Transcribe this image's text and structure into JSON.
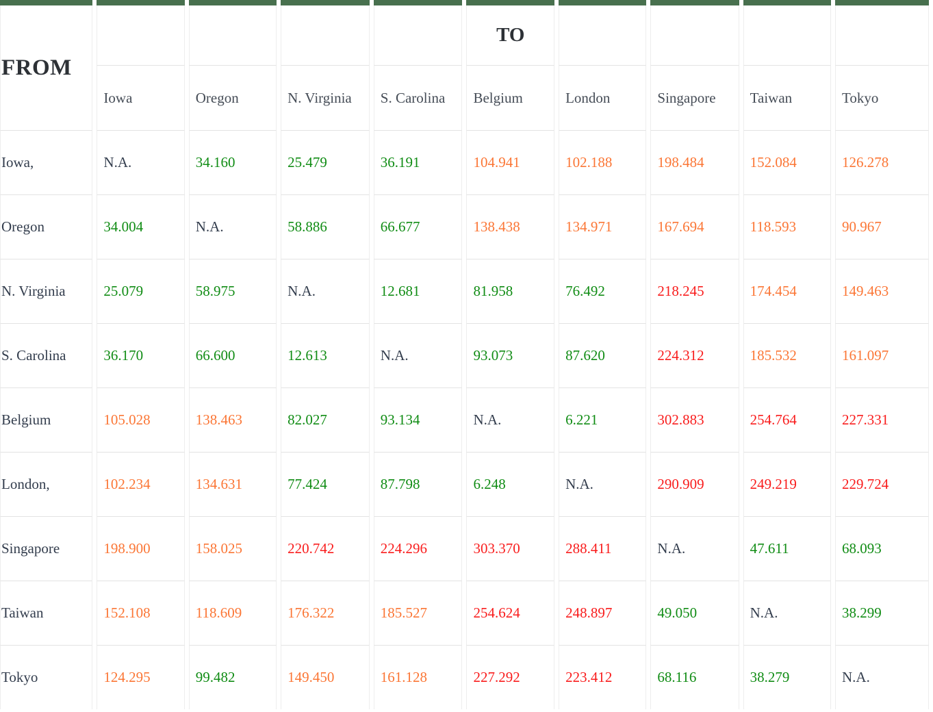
{
  "colors": {
    "green": "#108c14",
    "orange": "#fb7635",
    "red": "#f91c1c",
    "na": "#333d4d",
    "title": "#2d3136",
    "header_bar": "#48704e"
  },
  "matrix": {
    "from_label": "FROM",
    "to_label": "TO",
    "to_label_column_index": 4,
    "columns": [
      "Iowa",
      "Oregon",
      "N. Virginia",
      "S. Carolina",
      "Belgium",
      "London",
      "Singapore",
      "Taiwan",
      "Tokyo"
    ],
    "rows": [
      {
        "label": "Iowa,",
        "cells": [
          {
            "v": "N.A.",
            "c": "na"
          },
          {
            "v": "34.160",
            "c": "green"
          },
          {
            "v": "25.479",
            "c": "green"
          },
          {
            "v": "36.191",
            "c": "green"
          },
          {
            "v": "104.941",
            "c": "orange"
          },
          {
            "v": "102.188",
            "c": "orange"
          },
          {
            "v": "198.484",
            "c": "orange"
          },
          {
            "v": "152.084",
            "c": "orange"
          },
          {
            "v": "126.278",
            "c": "orange"
          }
        ]
      },
      {
        "label": "Oregon",
        "cells": [
          {
            "v": "34.004",
            "c": "green"
          },
          {
            "v": "N.A.",
            "c": "na"
          },
          {
            "v": "58.886",
            "c": "green"
          },
          {
            "v": "66.677",
            "c": "green"
          },
          {
            "v": "138.438",
            "c": "orange"
          },
          {
            "v": "134.971",
            "c": "orange"
          },
          {
            "v": "167.694",
            "c": "orange"
          },
          {
            "v": "118.593",
            "c": "orange"
          },
          {
            "v": "90.967",
            "c": "orange"
          }
        ]
      },
      {
        "label": "N. Virginia",
        "cells": [
          {
            "v": "25.079",
            "c": "green"
          },
          {
            "v": "58.975",
            "c": "green"
          },
          {
            "v": "N.A.",
            "c": "na"
          },
          {
            "v": "12.681",
            "c": "green"
          },
          {
            "v": "81.958",
            "c": "green"
          },
          {
            "v": "76.492",
            "c": "green"
          },
          {
            "v": "218.245",
            "c": "red"
          },
          {
            "v": "174.454",
            "c": "orange"
          },
          {
            "v": "149.463",
            "c": "orange"
          }
        ]
      },
      {
        "label": "S. Carolina",
        "cells": [
          {
            "v": "36.170",
            "c": "green"
          },
          {
            "v": "66.600",
            "c": "green"
          },
          {
            "v": "12.613",
            "c": "green"
          },
          {
            "v": "N.A.",
            "c": "na"
          },
          {
            "v": "93.073",
            "c": "green"
          },
          {
            "v": "87.620",
            "c": "green"
          },
          {
            "v": "224.312",
            "c": "red"
          },
          {
            "v": "185.532",
            "c": "orange"
          },
          {
            "v": "161.097",
            "c": "orange"
          }
        ]
      },
      {
        "label": "Belgium",
        "cells": [
          {
            "v": "105.028",
            "c": "orange"
          },
          {
            "v": "138.463",
            "c": "orange"
          },
          {
            "v": "82.027",
            "c": "green"
          },
          {
            "v": "93.134",
            "c": "green"
          },
          {
            "v": "N.A.",
            "c": "na"
          },
          {
            "v": "6.221",
            "c": "green"
          },
          {
            "v": "302.883",
            "c": "red"
          },
          {
            "v": "254.764",
            "c": "red"
          },
          {
            "v": "227.331",
            "c": "red"
          }
        ]
      },
      {
        "label": "London,",
        "cells": [
          {
            "v": "102.234",
            "c": "orange"
          },
          {
            "v": "134.631",
            "c": "orange"
          },
          {
            "v": "77.424",
            "c": "green"
          },
          {
            "v": "87.798",
            "c": "green"
          },
          {
            "v": "6.248",
            "c": "green"
          },
          {
            "v": "N.A.",
            "c": "na"
          },
          {
            "v": "290.909",
            "c": "red"
          },
          {
            "v": "249.219",
            "c": "red"
          },
          {
            "v": "229.724",
            "c": "red"
          }
        ]
      },
      {
        "label": "Singapore",
        "cells": [
          {
            "v": "198.900",
            "c": "orange"
          },
          {
            "v": "158.025",
            "c": "orange"
          },
          {
            "v": "220.742",
            "c": "red"
          },
          {
            "v": "224.296",
            "c": "red"
          },
          {
            "v": "303.370",
            "c": "red"
          },
          {
            "v": "288.411",
            "c": "red"
          },
          {
            "v": "N.A.",
            "c": "na"
          },
          {
            "v": "47.611",
            "c": "green"
          },
          {
            "v": "68.093",
            "c": "green"
          }
        ]
      },
      {
        "label": "Taiwan",
        "cells": [
          {
            "v": "152.108",
            "c": "orange"
          },
          {
            "v": "118.609",
            "c": "orange"
          },
          {
            "v": "176.322",
            "c": "orange"
          },
          {
            "v": "185.527",
            "c": "orange"
          },
          {
            "v": "254.624",
            "c": "red"
          },
          {
            "v": "248.897",
            "c": "red"
          },
          {
            "v": "49.050",
            "c": "green"
          },
          {
            "v": "N.A.",
            "c": "na"
          },
          {
            "v": "38.299",
            "c": "green"
          }
        ]
      },
      {
        "label": "Tokyo",
        "cells": [
          {
            "v": "124.295",
            "c": "orange"
          },
          {
            "v": "99.482",
            "c": "green"
          },
          {
            "v": "149.450",
            "c": "orange"
          },
          {
            "v": "161.128",
            "c": "orange"
          },
          {
            "v": "227.292",
            "c": "red"
          },
          {
            "v": "223.412",
            "c": "red"
          },
          {
            "v": "68.116",
            "c": "green"
          },
          {
            "v": "38.279",
            "c": "green"
          },
          {
            "v": "N.A.",
            "c": "na"
          }
        ]
      }
    ]
  }
}
